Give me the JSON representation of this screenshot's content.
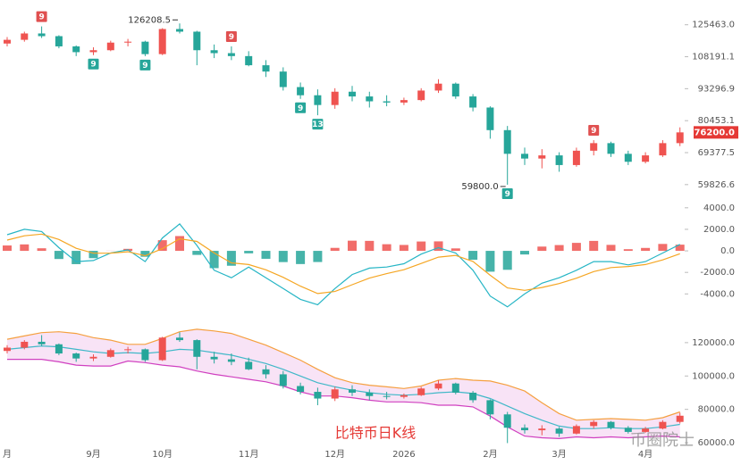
{
  "caption": "比特币日K线",
  "watermark": "币圈院士",
  "chart_data": [
    {
      "type": "candlestick",
      "categories": [
        "月",
        null,
        null,
        null,
        null,
        "9月",
        null,
        null,
        null,
        "10月",
        null,
        null,
        null,
        null,
        "11月",
        null,
        null,
        null,
        null,
        "12月",
        null,
        null,
        null,
        "2026",
        null,
        null,
        null,
        null,
        "2月",
        null,
        null,
        null,
        "3月",
        null,
        null,
        null,
        null,
        "4月",
        null,
        null
      ],
      "open": [
        115000,
        117000,
        120500,
        119000,
        113500,
        110500,
        111500,
        115500,
        116000,
        109500,
        123000,
        121500,
        111500,
        110000,
        108500,
        104000,
        101000,
        94000,
        90500,
        86500,
        92000,
        90000,
        88000,
        87500,
        88500,
        92500,
        95500,
        90000,
        85500,
        77000,
        69000,
        67500,
        68500,
        65500,
        70000,
        72500,
        69000,
        66500,
        68500,
        72500
      ],
      "high": [
        118500,
        121500,
        124500,
        119500,
        114000,
        113000,
        116500,
        117500,
        116500,
        123500,
        126208.5,
        122000,
        114500,
        113500,
        111000,
        106500,
        103000,
        96000,
        93000,
        93500,
        94500,
        92000,
        90500,
        89500,
        93500,
        97500,
        96000,
        91000,
        86000,
        78500,
        71000,
        70500,
        69500,
        71000,
        73500,
        73000,
        70000,
        69500,
        73500,
        78000
      ],
      "low": [
        113500,
        116000,
        118000,
        112500,
        108500,
        109000,
        111000,
        113500,
        108500,
        109000,
        120500,
        104000,
        107500,
        106500,
        103500,
        98500,
        92500,
        89000,
        82500,
        85000,
        88000,
        85500,
        86000,
        86500,
        88000,
        91500,
        89000,
        84000,
        74000,
        59800,
        65500,
        64500,
        63500,
        65000,
        68500,
        68000,
        65500,
        66000,
        68000,
        71500
      ],
      "close": [
        117000,
        120500,
        119000,
        113500,
        110500,
        111500,
        115500,
        116000,
        109500,
        123000,
        121500,
        111500,
        110000,
        108500,
        104000,
        101000,
        94000,
        90500,
        86500,
        92000,
        90000,
        88000,
        87500,
        88500,
        92500,
        95500,
        90000,
        85500,
        77000,
        69000,
        67500,
        68500,
        65500,
        70000,
        72500,
        69000,
        66500,
        68500,
        72500,
        76200
      ],
      "up_color": "#ef5350",
      "down_color": "#26a69a",
      "log_scale": true,
      "ylim": [
        55500,
        135000
      ],
      "yticks": [
        {
          "value": 125463,
          "label": "125463.0"
        },
        {
          "value": 108191.1,
          "label": "108191.1"
        },
        {
          "value": 93296.9,
          "label": "93296.9"
        },
        {
          "value": 80453.1,
          "label": "80453.1"
        },
        {
          "value": 69377.5,
          "label": "69377.5"
        },
        {
          "value": 59826.6,
          "label": "59826.6"
        }
      ],
      "markers": [
        {
          "label": "9",
          "at": 2,
          "side": "above"
        },
        {
          "label": "9",
          "at": 5,
          "side": "below"
        },
        {
          "label": "9",
          "at": 8,
          "side": "below"
        },
        {
          "label": "9",
          "at": 13,
          "side": "above"
        },
        {
          "label": "9",
          "at": 17,
          "side": "below"
        },
        {
          "label": "13",
          "at": 18,
          "side": "below"
        },
        {
          "label": "9",
          "at": 29,
          "side": "below"
        },
        {
          "label": "9",
          "at": 34,
          "side": "above"
        }
      ],
      "extreme_labels": [
        {
          "at": 10,
          "label": "126208.5",
          "side": "high"
        },
        {
          "at": 29,
          "label": "59800.0",
          "side": "low"
        }
      ],
      "last_price_label": "76200.0"
    },
    {
      "type": "macd",
      "histogram": [
        500,
        600,
        240,
        -756,
        -1234,
        -680,
        12,
        187,
        -548,
        991,
        1375,
        -375,
        -1605,
        -1383,
        -230,
        -738,
        -1043,
        -1226,
        -1036,
        278,
        947,
        928,
        617,
        550,
        870,
        882,
        229,
        -823,
        -1934,
        -1760,
        -336,
        398,
        539,
        743,
        926,
        556,
        154,
        272,
        643,
        577
      ],
      "dif": [
        1500,
        2000,
        1800,
        300,
        -1000,
        -900,
        -200,
        100,
        -1000,
        1200,
        2500,
        500,
        -1800,
        -2500,
        -1500,
        -2500,
        -3500,
        -4500,
        -5000,
        -3500,
        -2200,
        -1600,
        -1500,
        -1200,
        -300,
        300,
        -200,
        -1800,
        -4200,
        -5200,
        -4000,
        -3000,
        -2500,
        -1800,
        -1000,
        -1000,
        -1300,
        -1000,
        -200,
        600
      ],
      "dea": [
        1000,
        1400,
        1560,
        1056,
        234,
        -220,
        -212,
        -87,
        -452,
        209,
        1125,
        875,
        -195,
        -1117,
        -1270,
        -1762,
        -2457,
        -3274,
        -3964,
        -3778,
        -3147,
        -2528,
        -2117,
        -1750,
        -1170,
        -582,
        -429,
        -977,
        -2266,
        -3440,
        -3664,
        -3398,
        -3039,
        -2543,
        -1926,
        -1556,
        -1454,
        -1272,
        -843,
        -266
      ],
      "positive_color": "#ef5350",
      "negative_color": "#26a69a",
      "dif_color": "#26b5c5",
      "dea_color": "#f5a623",
      "ylim": [
        -5300,
        4400
      ],
      "yticks": [
        {
          "value": 4000,
          "label": "4000.0"
        },
        {
          "value": 2000,
          "label": "2000.0"
        },
        {
          "value": 0,
          "label": "0.0"
        },
        {
          "value": -2000,
          "label": "-2000.0"
        },
        {
          "value": -4000,
          "label": "-4000.0"
        }
      ]
    },
    {
      "type": "bollinger",
      "upper": [
        122000,
        124000,
        126000,
        126500,
        125500,
        123000,
        121500,
        119000,
        119000,
        122500,
        126500,
        128000,
        127000,
        125500,
        122000,
        118500,
        114000,
        109500,
        104000,
        99000,
        96000,
        94500,
        93500,
        92500,
        94000,
        97500,
        98500,
        97500,
        97000,
        94500,
        91000,
        84000,
        77500,
        73500,
        74000,
        74500,
        74000,
        73500,
        75000,
        78500
      ],
      "middle": [
        116000,
        117000,
        118000,
        117500,
        116000,
        114500,
        113500,
        114000,
        113500,
        114500,
        116000,
        115500,
        114000,
        112500,
        110000,
        107500,
        104000,
        100000,
        96000,
        93500,
        91500,
        90000,
        89000,
        88500,
        89000,
        90000,
        90500,
        89500,
        86500,
        82000,
        77500,
        73500,
        70000,
        68500,
        68500,
        69000,
        68500,
        68500,
        69500,
        71000
      ],
      "lower": [
        110000,
        110000,
        110000,
        108500,
        106500,
        106000,
        106000,
        109000,
        108000,
        106500,
        105500,
        103000,
        101000,
        99500,
        98000,
        96500,
        94000,
        90500,
        88000,
        88000,
        87000,
        85500,
        84500,
        84500,
        84000,
        82500,
        82500,
        81500,
        76000,
        69500,
        64000,
        63000,
        62500,
        63500,
        63000,
        63500,
        63000,
        63500,
        64000,
        63500
      ],
      "upper_color": "#f5a040",
      "middle_color": "#40b8c8",
      "lower_color": "#d040c0",
      "fill_color": "#f6dcf4",
      "ylim": [
        57900,
        130100
      ],
      "yticks": [
        {
          "value": 120000,
          "label": "120000.0"
        },
        {
          "value": 100000,
          "label": "100000.0"
        },
        {
          "value": 80000,
          "label": "80000.0"
        },
        {
          "value": 60000,
          "label": "60000.0"
        }
      ]
    }
  ]
}
